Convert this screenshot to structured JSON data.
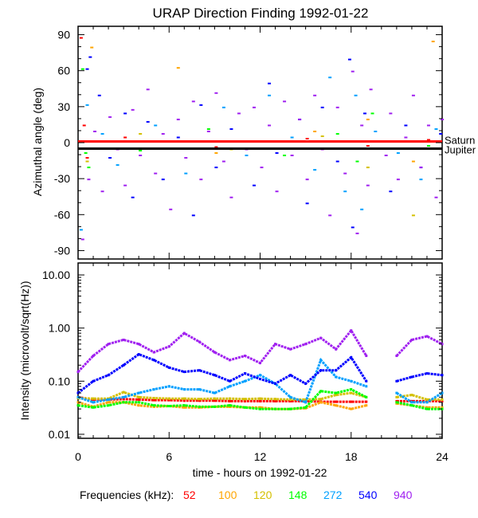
{
  "chart_data": [
    {
      "type": "scatter",
      "title": "URAP Direction Finding  1992-01-22",
      "ylabel": "Azimuthal angle (deg)",
      "xlim": [
        0,
        24
      ],
      "ylim": [
        -97,
        97
      ],
      "yticks": [
        "90",
        "60",
        "30",
        "0",
        "-30",
        "-60",
        "-90"
      ],
      "ytick_values": [
        90,
        60,
        30,
        0,
        -30,
        -60,
        -90
      ],
      "reference_lines": [
        {
          "name": "Saturn",
          "value": 1,
          "color": "#ff0000"
        },
        {
          "name": "Jupiter",
          "value": -5,
          "color": "#000000"
        }
      ],
      "series": [
        {
          "name": "52",
          "color": "#ff0000",
          "points": [
            [
              0.1,
              88
            ],
            [
              0.3,
              15
            ],
            [
              0.4,
              2
            ],
            [
              0.5,
              -12
            ],
            [
              3,
              5
            ],
            [
              9,
              -3
            ],
            [
              15,
              4
            ],
            [
              19,
              -2
            ],
            [
              23,
              3
            ]
          ]
        },
        {
          "name": "100",
          "color": "#ffa500",
          "points": [
            [
              0.8,
              80
            ],
            [
              6.5,
              63
            ],
            [
              9,
              -8
            ],
            [
              15.5,
              10
            ],
            [
              19,
              20
            ],
            [
              22,
              -15
            ],
            [
              23.3,
              85
            ]
          ]
        },
        {
          "name": "120",
          "color": "#d4c000",
          "points": [
            [
              0.5,
              -15
            ],
            [
              4,
              8
            ],
            [
              10,
              -5
            ],
            [
              16,
              6
            ],
            [
              19,
              -20
            ],
            [
              22,
              -60
            ],
            [
              23,
              -4
            ]
          ]
        },
        {
          "name": "148",
          "color": "#00ff00",
          "points": [
            [
              0.2,
              62
            ],
            [
              0.4,
              -8
            ],
            [
              0.6,
              -20
            ],
            [
              4,
              -6
            ],
            [
              8.5,
              12
            ],
            [
              13.5,
              -10
            ],
            [
              17,
              8
            ],
            [
              18.3,
              -15
            ],
            [
              19.3,
              25
            ],
            [
              23,
              -2
            ]
          ]
        },
        {
          "name": "272",
          "color": "#00a0ff",
          "points": [
            [
              0.1,
              -72
            ],
            [
              0.5,
              32
            ],
            [
              1.5,
              8
            ],
            [
              2.5,
              -18
            ],
            [
              5,
              15
            ],
            [
              7,
              -25
            ],
            [
              9.5,
              30
            ],
            [
              11,
              -10
            ],
            [
              12.5,
              40
            ],
            [
              14,
              5
            ],
            [
              15.5,
              -22
            ],
            [
              16.5,
              55
            ],
            [
              17.5,
              -40
            ],
            [
              18.2,
              40
            ],
            [
              18.6,
              -55
            ],
            [
              19.5,
              10
            ],
            [
              21,
              -8
            ],
            [
              22.5,
              -30
            ],
            [
              23.5,
              12
            ]
          ]
        },
        {
          "name": "540",
          "color": "#0000ff",
          "points": [
            [
              0.7,
              72
            ],
            [
              0.5,
              62
            ],
            [
              1.3,
              40
            ],
            [
              2,
              -12
            ],
            [
              3,
              25
            ],
            [
              3.5,
              -45
            ],
            [
              4.5,
              18
            ],
            [
              5.5,
              -30
            ],
            [
              6.5,
              5
            ],
            [
              7.5,
              -60
            ],
            [
              8,
              32
            ],
            [
              9,
              -20
            ],
            [
              10,
              12
            ],
            [
              11.5,
              -35
            ],
            [
              12.5,
              50
            ],
            [
              13,
              -8
            ],
            [
              14.5,
              20
            ],
            [
              15,
              -50
            ],
            [
              16,
              30
            ],
            [
              17,
              -15
            ],
            [
              17.8,
              70
            ],
            [
              18,
              -70
            ],
            [
              18.8,
              25
            ],
            [
              20.5,
              -40
            ],
            [
              21.5,
              15
            ],
            [
              22.5,
              -20
            ],
            [
              23.8,
              8
            ]
          ]
        },
        {
          "name": "940",
          "color": "#a020f0",
          "points": [
            [
              0.2,
              -80
            ],
            [
              0.6,
              -30
            ],
            [
              1,
              10
            ],
            [
              1.5,
              -40
            ],
            [
              2,
              22
            ],
            [
              2.5,
              -5
            ],
            [
              3,
              -35
            ],
            [
              3.5,
              28
            ],
            [
              4,
              -10
            ],
            [
              4.5,
              45
            ],
            [
              5,
              -25
            ],
            [
              5.5,
              8
            ],
            [
              6,
              -55
            ],
            [
              6.5,
              20
            ],
            [
              7,
              -12
            ],
            [
              7.5,
              35
            ],
            [
              8,
              -30
            ],
            [
              8.5,
              10
            ],
            [
              9,
              42
            ],
            [
              9.5,
              -15
            ],
            [
              10,
              -45
            ],
            [
              10.5,
              25
            ],
            [
              11,
              -5
            ],
            [
              11.5,
              30
            ],
            [
              12,
              -20
            ],
            [
              12.5,
              15
            ],
            [
              13,
              -40
            ],
            [
              13.5,
              35
            ],
            [
              14,
              -10
            ],
            [
              14.5,
              20
            ],
            [
              15,
              -30
            ],
            [
              15.5,
              40
            ],
            [
              16,
              -5
            ],
            [
              16.5,
              -60
            ],
            [
              17,
              30
            ],
            [
              17.5,
              -25
            ],
            [
              18,
              60
            ],
            [
              18.3,
              -75
            ],
            [
              18.6,
              15
            ],
            [
              19,
              -35
            ],
            [
              19.2,
              45
            ],
            [
              20.2,
              -10
            ],
            [
              20.5,
              25
            ],
            [
              21,
              -30
            ],
            [
              21.5,
              5
            ],
            [
              22,
              40
            ],
            [
              22.5,
              -20
            ],
            [
              23,
              15
            ],
            [
              23.5,
              -45
            ],
            [
              23.9,
              20
            ]
          ]
        }
      ]
    },
    {
      "type": "line",
      "ylabel": "Intensity (microvolt/sqrt(Hz))",
      "xlabel": "time - hours on 1992-01-22",
      "xlim": [
        0,
        24
      ],
      "ylim": [
        0.0084,
        16.8
      ],
      "yscale": "log",
      "xticks": [
        "0",
        "6",
        "12",
        "18",
        "24"
      ],
      "xtick_values": [
        0,
        6,
        12,
        18,
        24
      ],
      "yticks": [
        "10.00",
        "1.00",
        "0.10",
        "0.01"
      ],
      "ytick_values": [
        10,
        1,
        0.1,
        0.01
      ],
      "x": [
        0,
        1,
        2,
        3,
        4,
        5,
        6,
        7,
        8,
        9,
        10,
        11,
        12,
        13,
        14,
        15,
        16,
        17,
        18,
        19,
        20,
        21,
        22,
        23,
        24
      ],
      "series": [
        {
          "name": "52",
          "color": "#ff0000",
          "values": [
            0.05,
            0.045,
            0.045,
            0.046,
            0.045,
            0.044,
            0.044,
            0.043,
            0.043,
            0.043,
            0.042,
            0.042,
            0.042,
            0.042,
            0.042,
            0.042,
            0.041,
            0.041,
            0.041,
            0.041,
            null,
            0.042,
            0.042,
            0.042,
            0.042
          ]
        },
        {
          "name": "100",
          "color": "#ffa500",
          "values": [
            0.04,
            0.033,
            0.04,
            0.04,
            0.035,
            0.033,
            0.034,
            0.032,
            0.032,
            0.033,
            0.033,
            0.032,
            0.032,
            0.03,
            0.03,
            0.031,
            0.04,
            0.035,
            0.03,
            0.035,
            null,
            0.038,
            0.035,
            0.032,
            0.032
          ]
        },
        {
          "name": "120",
          "color": "#d4c000",
          "values": [
            0.048,
            0.047,
            0.047,
            0.062,
            0.05,
            0.048,
            0.047,
            0.047,
            0.046,
            0.047,
            0.047,
            0.046,
            0.047,
            0.046,
            0.045,
            0.045,
            0.046,
            0.055,
            0.06,
            0.05,
            null,
            0.05,
            0.055,
            0.045,
            0.045
          ]
        },
        {
          "name": "148",
          "color": "#00ff00",
          "values": [
            0.035,
            0.032,
            0.035,
            0.04,
            0.04,
            0.035,
            0.034,
            0.035,
            0.033,
            0.033,
            0.035,
            0.032,
            0.03,
            0.03,
            0.03,
            0.032,
            0.065,
            0.06,
            0.07,
            0.05,
            null,
            0.04,
            0.035,
            0.03,
            0.03
          ]
        },
        {
          "name": "272",
          "color": "#00a0ff",
          "values": [
            0.05,
            0.04,
            0.045,
            0.05,
            0.06,
            0.07,
            0.08,
            0.07,
            0.07,
            0.06,
            0.08,
            0.1,
            0.13,
            0.09,
            0.05,
            0.04,
            0.25,
            0.12,
            0.1,
            0.08,
            null,
            0.06,
            0.04,
            0.04,
            0.06
          ]
        },
        {
          "name": "540",
          "color": "#0000ff",
          "values": [
            0.06,
            0.1,
            0.13,
            0.2,
            0.32,
            0.25,
            0.18,
            0.15,
            0.16,
            0.13,
            0.1,
            0.14,
            0.11,
            0.09,
            0.13,
            0.09,
            0.16,
            0.16,
            0.28,
            0.1,
            null,
            0.1,
            0.12,
            0.14,
            0.13
          ]
        },
        {
          "name": "940",
          "color": "#a020f0",
          "values": [
            0.15,
            0.3,
            0.5,
            0.6,
            0.5,
            0.35,
            0.45,
            0.8,
            0.55,
            0.35,
            0.25,
            0.3,
            0.22,
            0.5,
            0.4,
            0.5,
            0.65,
            0.4,
            0.9,
            0.3,
            null,
            0.3,
            0.6,
            0.7,
            0.5
          ]
        }
      ]
    }
  ],
  "legend": {
    "label": "Frequencies (kHz):",
    "entries": [
      {
        "name": "52",
        "color": "#ff0000"
      },
      {
        "name": "100",
        "color": "#ffa500"
      },
      {
        "name": "120",
        "color": "#d4c000"
      },
      {
        "name": "148",
        "color": "#00ff00"
      },
      {
        "name": "272",
        "color": "#00a0ff"
      },
      {
        "name": "540",
        "color": "#0000ff"
      },
      {
        "name": "940",
        "color": "#a020f0"
      }
    ]
  }
}
